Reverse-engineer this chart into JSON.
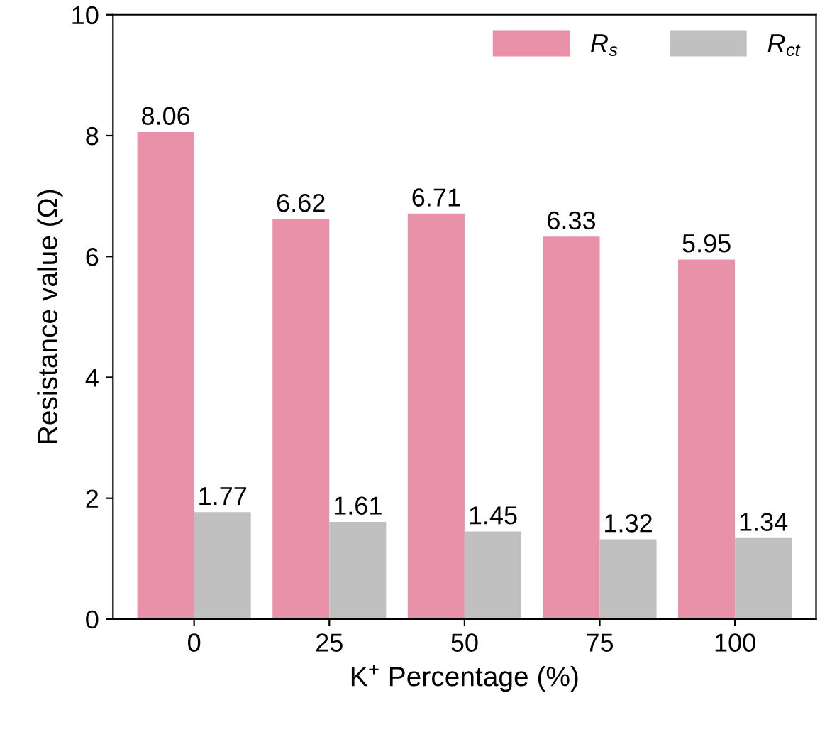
{
  "chart_data": {
    "type": "bar",
    "xlabel": "K$^{+}$ Percentage (%)",
    "ylabel": "Resistance value (Ω)",
    "categories": [
      "0",
      "25",
      "50",
      "75",
      "100"
    ],
    "series": [
      {
        "name": "R$_{s}$",
        "color": "#e991a8",
        "values": [
          8.06,
          6.62,
          6.71,
          6.33,
          5.95
        ]
      },
      {
        "name": "R$_{ct}$",
        "color": "#c0c0c0",
        "values": [
          1.77,
          1.61,
          1.45,
          1.32,
          1.34
        ]
      }
    ],
    "ylim": [
      0,
      10
    ],
    "yticks": [
      0,
      2,
      4,
      6,
      8,
      10
    ],
    "data_labels": true,
    "legend": "top right",
    "grid": false
  }
}
